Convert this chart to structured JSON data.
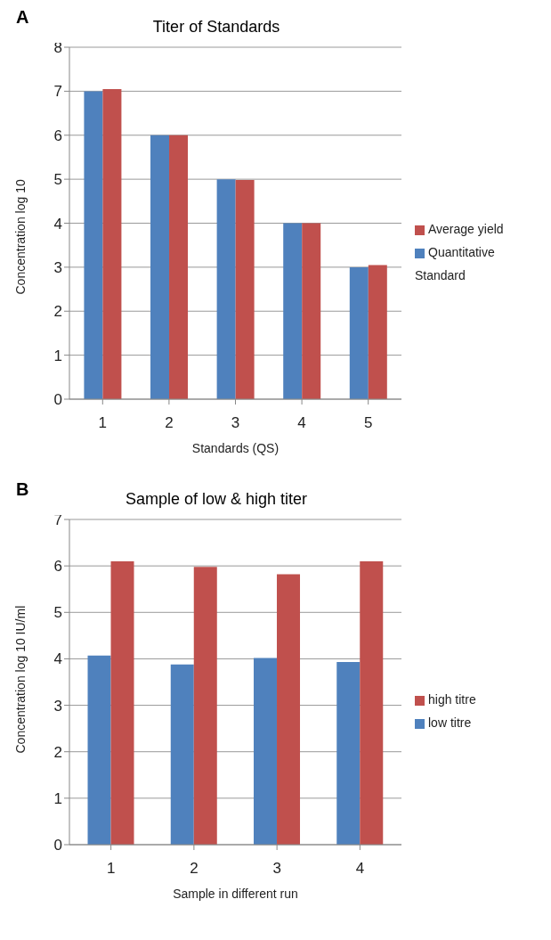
{
  "chart_data": [
    {
      "type": "bar",
      "title": "Titer of Standards",
      "xlabel": "Standards (QS)",
      "ylabel": "Concentration log 10",
      "annotations": [
        "A"
      ],
      "categories": [
        "1",
        "2",
        "3",
        "4",
        "5"
      ],
      "series": [
        {
          "name": "Quantitative Standard",
          "color": "#4f81bd",
          "values": [
            7,
            6,
            5,
            4,
            3
          ]
        },
        {
          "name": "Average yield",
          "color": "#c0504d",
          "values": [
            7.05,
            6,
            4.98,
            4,
            3.05
          ]
        }
      ],
      "ylim": [
        0,
        8
      ],
      "yticks": [
        0,
        1,
        2,
        3,
        4,
        5,
        6,
        7,
        8
      ],
      "grid": "y",
      "legend": "right"
    },
    {
      "type": "bar",
      "title": "Sample of low & high titer",
      "xlabel": "Sample in different run",
      "ylabel": "Concentration log 10 IU/ml",
      "annotations": [
        "B"
      ],
      "categories": [
        "1",
        "2",
        "3",
        "4"
      ],
      "series": [
        {
          "name": "low titre",
          "color": "#4f81bd",
          "values": [
            4.07,
            3.88,
            4.02,
            3.93
          ]
        },
        {
          "name": "high titre",
          "color": "#c0504d",
          "values": [
            6.1,
            5.98,
            5.82,
            6.1
          ]
        }
      ],
      "ylim": [
        0,
        7
      ],
      "yticks": [
        0,
        1,
        2,
        3,
        4,
        5,
        6,
        7
      ],
      "grid": "y",
      "legend": "right"
    }
  ]
}
